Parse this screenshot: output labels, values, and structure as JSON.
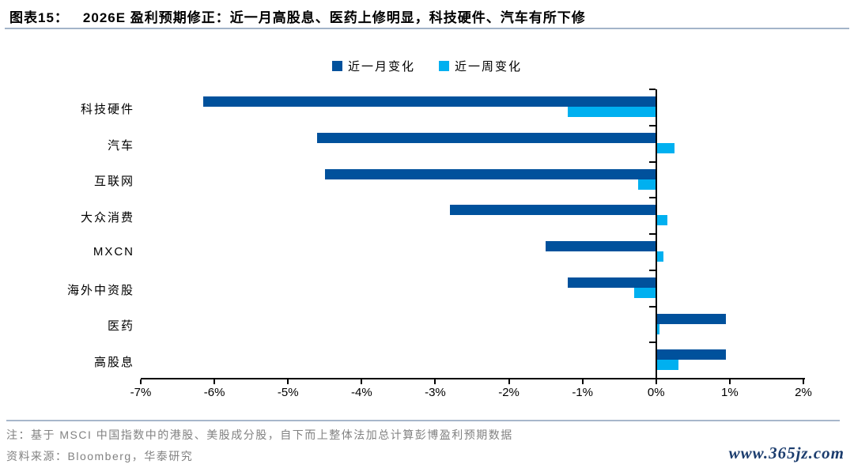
{
  "header": {
    "label": "图表15：",
    "title": "2026E 盈利预期修正：近一月高股息、医药上修明显，科技硬件、汽车有所下修"
  },
  "chart_data": {
    "type": "bar",
    "orientation": "horizontal",
    "categories": [
      "科技硬件",
      "汽车",
      "互联网",
      "大众消费",
      "MXCN",
      "海外中资股",
      "医药",
      "高股息"
    ],
    "series": [
      {
        "name": "近一月变化",
        "color": "#00519c",
        "values": [
          -6.15,
          -4.6,
          -4.5,
          -2.8,
          -1.5,
          -1.2,
          0.95,
          0.95
        ]
      },
      {
        "name": "近一周变化",
        "color": "#00b0f0",
        "values": [
          -1.2,
          0.25,
          -0.25,
          0.15,
          0.1,
          -0.3,
          0.05,
          0.3
        ]
      }
    ],
    "xlim": [
      -7,
      2
    ],
    "x_tick_step": 1,
    "x_tick_labels": [
      "-7%",
      "-6%",
      "-5%",
      "-4%",
      "-3%",
      "-2%",
      "-1%",
      "0%",
      "1%",
      "2%"
    ],
    "value_unit": "%",
    "grid": false,
    "legend_position": "top-center"
  },
  "notes": {
    "note": "注：基于 MSCI 中国指数中的港股、美股成分股，自下而上整体法加总计算彭博盈利预期数据",
    "source": "资料来源：Bloomberg，华泰研究"
  },
  "watermark": "www.365jz.com",
  "colors": {
    "month_bar": "#00519c",
    "week_bar": "#00b0f0",
    "axis": "#000000",
    "header_rule": "#a3b4c9",
    "footer_rule": "#a7b7cb",
    "note_text": "#828282",
    "watermark_text": "#1c3d6e"
  }
}
